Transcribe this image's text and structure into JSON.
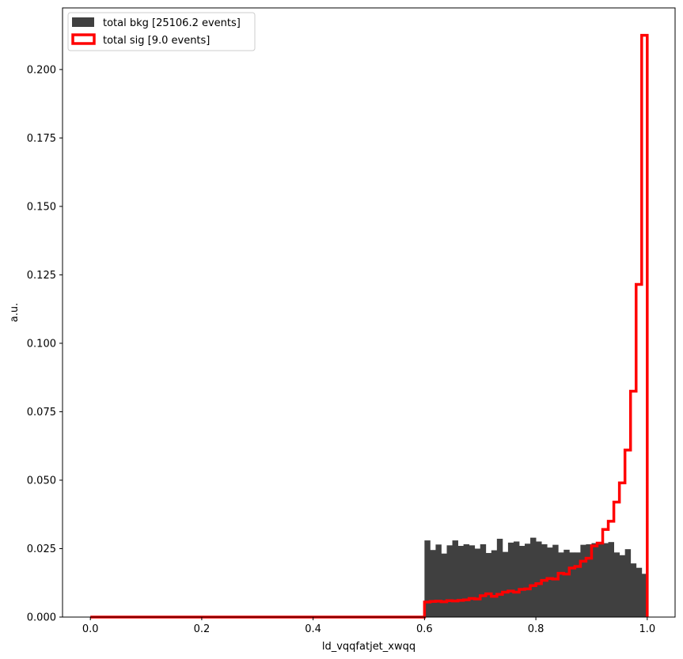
{
  "chart_data": {
    "type": "histogram",
    "xlabel": "ld_vqqfatjet_xwqq",
    "ylabel": "a.u.",
    "xlim": [
      -0.05,
      1.05
    ],
    "ylim": [
      0.0,
      0.2225
    ],
    "xticks": [
      0.0,
      0.2,
      0.4,
      0.6,
      0.8,
      1.0
    ],
    "xtick_labels": [
      "0.0",
      "0.2",
      "0.4",
      "0.6",
      "0.8",
      "1.0"
    ],
    "yticks": [
      0.0,
      0.025,
      0.05,
      0.075,
      0.1,
      0.125,
      0.15,
      0.175,
      0.2
    ],
    "ytick_labels": [
      "0.000",
      "0.025",
      "0.050",
      "0.075",
      "0.100",
      "0.125",
      "0.150",
      "0.175",
      "0.200"
    ],
    "grid": false,
    "legend_position": "top-left",
    "series": [
      {
        "name": "total bkg [25106.2 events]",
        "style": "filled",
        "color": "#404040",
        "bins": [
          [
            0.6,
            0.61,
            0.028
          ],
          [
            0.61,
            0.62,
            0.0245
          ],
          [
            0.62,
            0.63,
            0.0265
          ],
          [
            0.63,
            0.64,
            0.0232
          ],
          [
            0.64,
            0.65,
            0.0262
          ],
          [
            0.65,
            0.66,
            0.028
          ],
          [
            0.66,
            0.67,
            0.026
          ],
          [
            0.67,
            0.68,
            0.0266
          ],
          [
            0.68,
            0.69,
            0.0262
          ],
          [
            0.69,
            0.7,
            0.025
          ],
          [
            0.7,
            0.71,
            0.0266
          ],
          [
            0.71,
            0.72,
            0.0234
          ],
          [
            0.72,
            0.73,
            0.0244
          ],
          [
            0.73,
            0.74,
            0.0286
          ],
          [
            0.74,
            0.75,
            0.0238
          ],
          [
            0.75,
            0.76,
            0.0272
          ],
          [
            0.76,
            0.77,
            0.0276
          ],
          [
            0.77,
            0.78,
            0.026
          ],
          [
            0.78,
            0.79,
            0.0268
          ],
          [
            0.79,
            0.8,
            0.029
          ],
          [
            0.8,
            0.81,
            0.0276
          ],
          [
            0.81,
            0.82,
            0.0266
          ],
          [
            0.82,
            0.83,
            0.0254
          ],
          [
            0.83,
            0.84,
            0.0264
          ],
          [
            0.84,
            0.85,
            0.0236
          ],
          [
            0.85,
            0.86,
            0.0246
          ],
          [
            0.86,
            0.87,
            0.0236
          ],
          [
            0.87,
            0.88,
            0.0236
          ],
          [
            0.88,
            0.89,
            0.0264
          ],
          [
            0.89,
            0.9,
            0.0266
          ],
          [
            0.9,
            0.91,
            0.027
          ],
          [
            0.91,
            0.92,
            0.0266
          ],
          [
            0.92,
            0.93,
            0.027
          ],
          [
            0.93,
            0.94,
            0.0274
          ],
          [
            0.94,
            0.95,
            0.0236
          ],
          [
            0.95,
            0.96,
            0.0226
          ],
          [
            0.96,
            0.97,
            0.0248
          ],
          [
            0.97,
            0.98,
            0.0196
          ],
          [
            0.98,
            0.99,
            0.018
          ],
          [
            0.99,
            1.0,
            0.0158
          ]
        ]
      },
      {
        "name": "total sig [9.0 events]",
        "style": "step",
        "color": "#ff0000",
        "bins": [
          [
            0.0,
            0.6,
            0.0
          ],
          [
            0.6,
            0.61,
            0.0055
          ],
          [
            0.61,
            0.62,
            0.0057
          ],
          [
            0.62,
            0.63,
            0.0058
          ],
          [
            0.63,
            0.64,
            0.0056
          ],
          [
            0.64,
            0.65,
            0.006
          ],
          [
            0.65,
            0.66,
            0.0059
          ],
          [
            0.66,
            0.67,
            0.0061
          ],
          [
            0.67,
            0.68,
            0.0063
          ],
          [
            0.68,
            0.69,
            0.0068
          ],
          [
            0.69,
            0.7,
            0.0066
          ],
          [
            0.7,
            0.71,
            0.0078
          ],
          [
            0.71,
            0.72,
            0.0085
          ],
          [
            0.72,
            0.73,
            0.0076
          ],
          [
            0.73,
            0.74,
            0.0083
          ],
          [
            0.74,
            0.75,
            0.0091
          ],
          [
            0.75,
            0.76,
            0.0095
          ],
          [
            0.76,
            0.77,
            0.0091
          ],
          [
            0.77,
            0.78,
            0.0101
          ],
          [
            0.78,
            0.79,
            0.0103
          ],
          [
            0.79,
            0.8,
            0.0115
          ],
          [
            0.8,
            0.81,
            0.0122
          ],
          [
            0.81,
            0.82,
            0.0134
          ],
          [
            0.82,
            0.83,
            0.0141
          ],
          [
            0.83,
            0.84,
            0.0139
          ],
          [
            0.84,
            0.85,
            0.016
          ],
          [
            0.85,
            0.86,
            0.0157
          ],
          [
            0.86,
            0.87,
            0.0179
          ],
          [
            0.87,
            0.88,
            0.0185
          ],
          [
            0.88,
            0.89,
            0.0204
          ],
          [
            0.89,
            0.9,
            0.0215
          ],
          [
            0.9,
            0.91,
            0.026
          ],
          [
            0.91,
            0.92,
            0.027
          ],
          [
            0.92,
            0.93,
            0.032
          ],
          [
            0.93,
            0.94,
            0.035
          ],
          [
            0.94,
            0.95,
            0.042
          ],
          [
            0.95,
            0.96,
            0.049
          ],
          [
            0.96,
            0.97,
            0.061
          ],
          [
            0.97,
            0.98,
            0.0825
          ],
          [
            0.98,
            0.99,
            0.1215
          ],
          [
            0.99,
            1.0,
            0.2125
          ]
        ]
      }
    ]
  }
}
